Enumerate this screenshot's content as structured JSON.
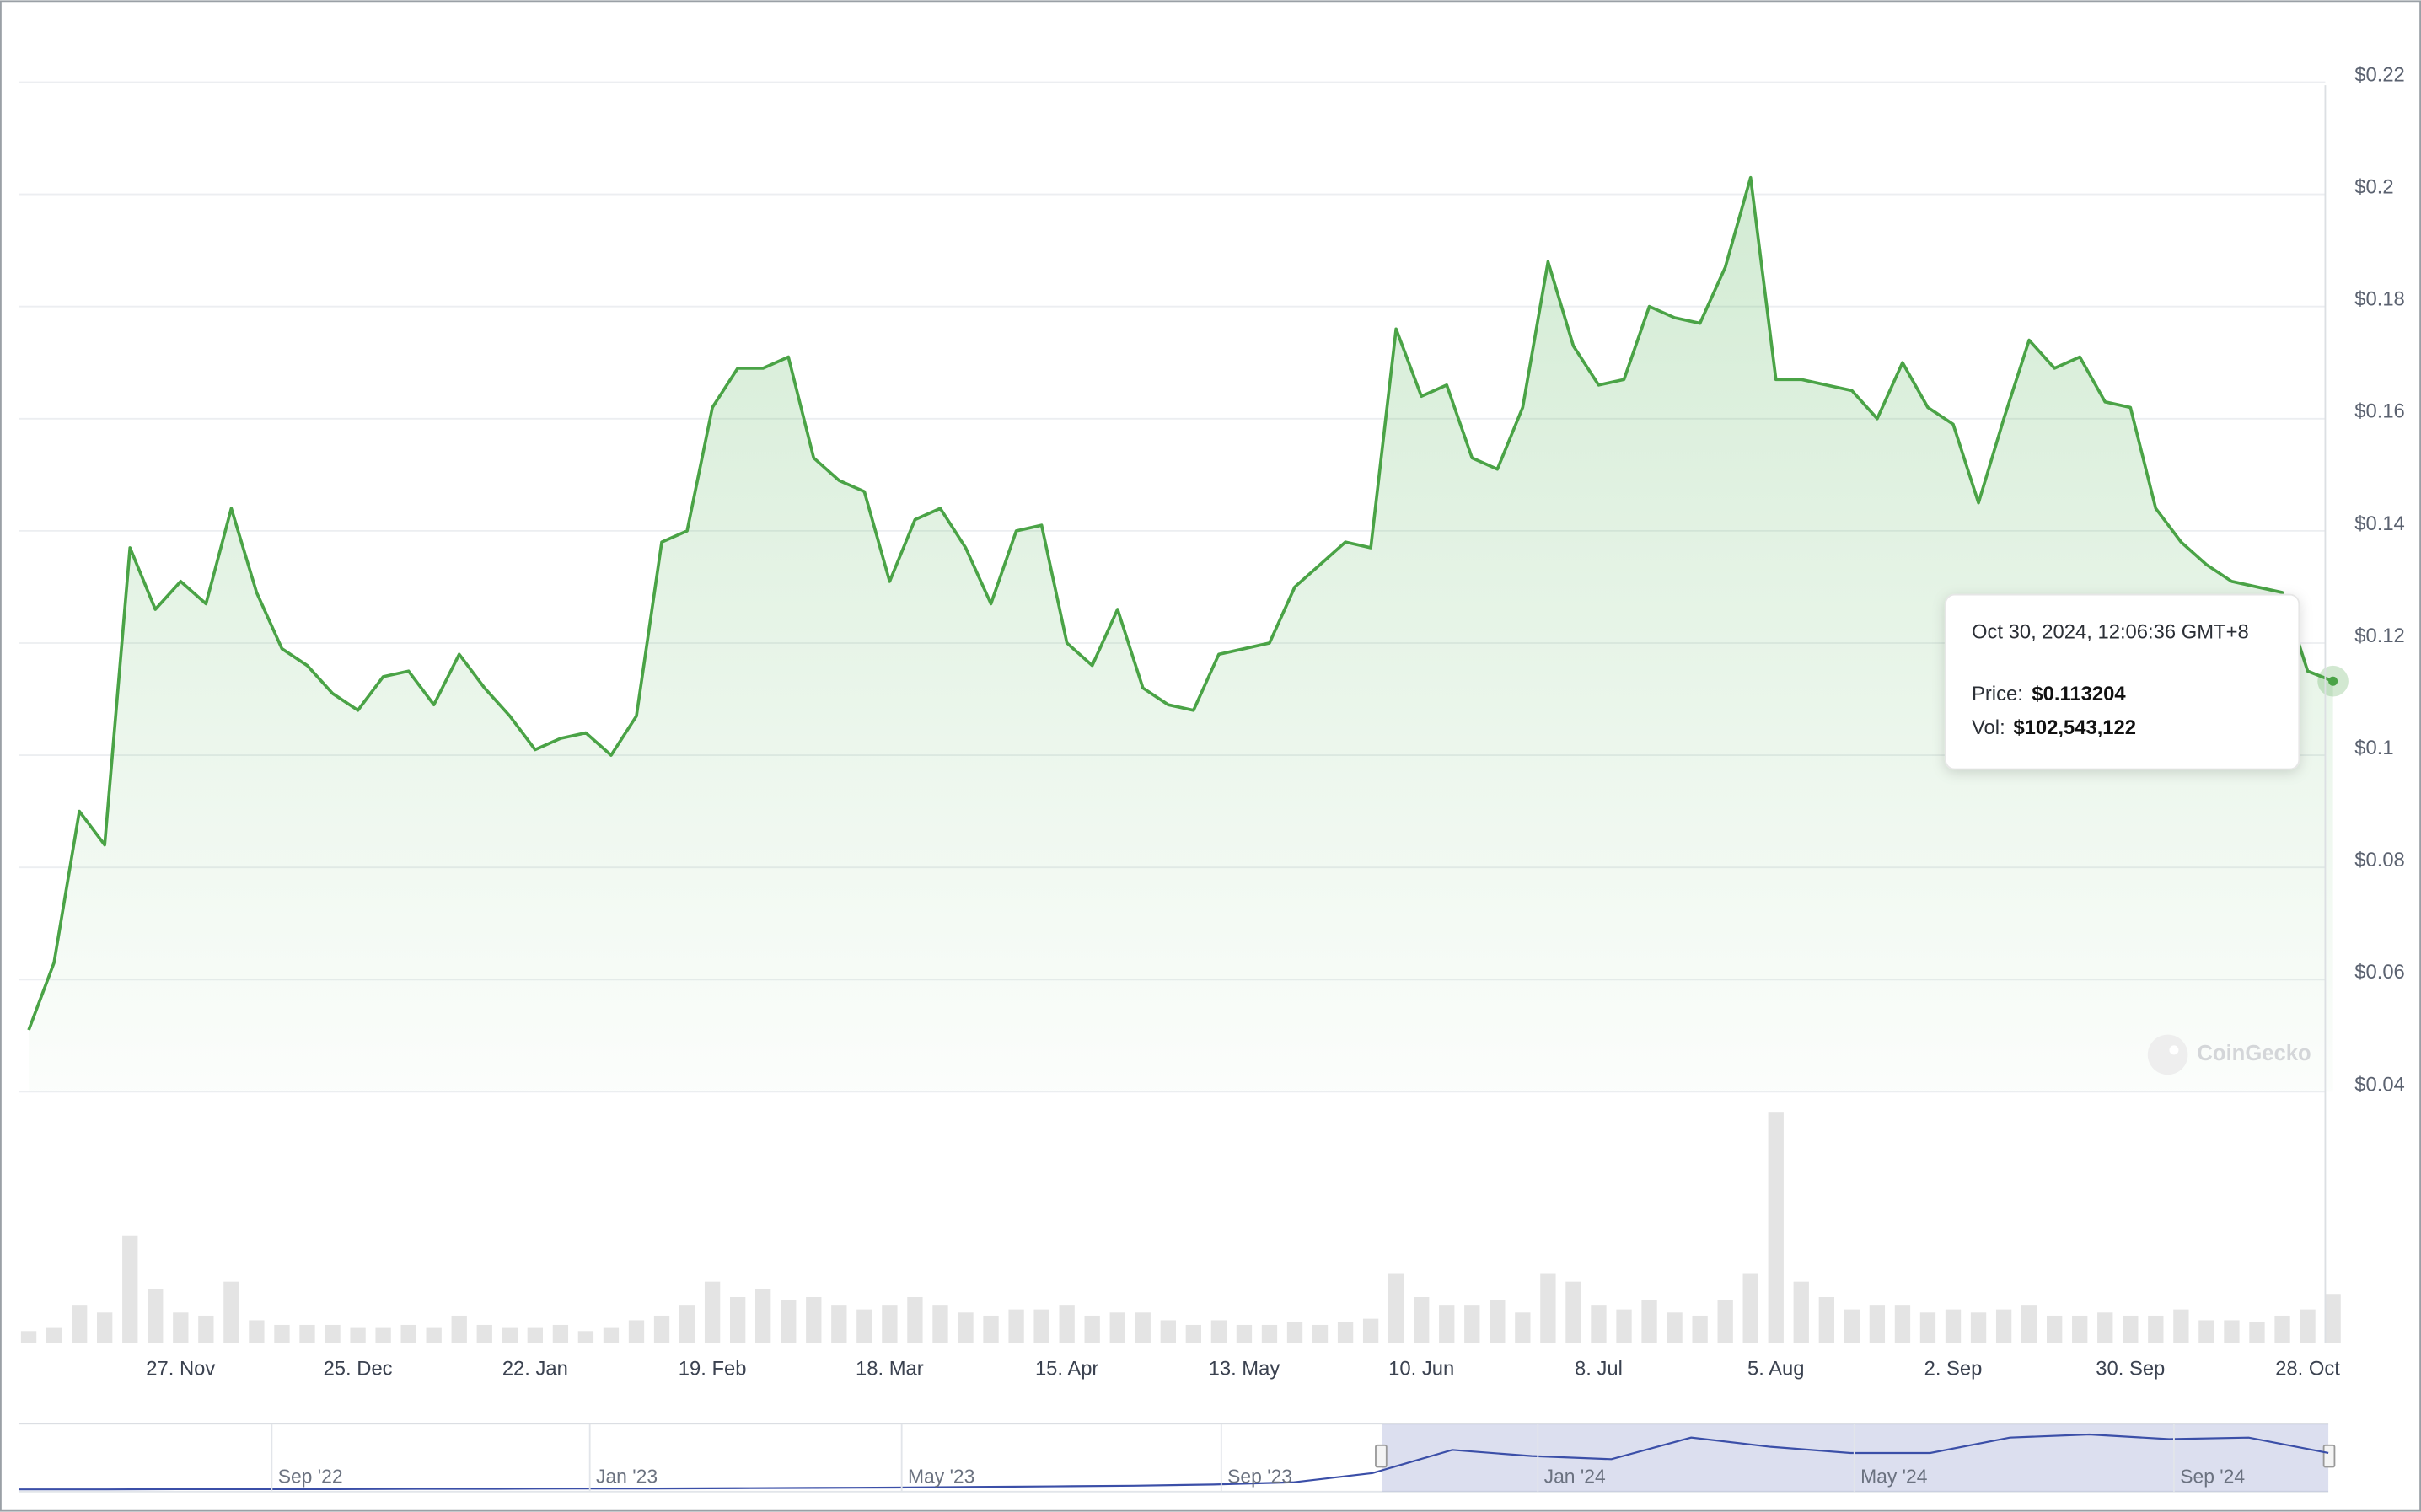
{
  "chart_data": {
    "type": "line",
    "color": "#4aa346",
    "categories": [
      null,
      null,
      null,
      null,
      null,
      null,
      "27. Nov",
      null,
      null,
      null,
      null,
      null,
      null,
      "25. Dec",
      null,
      null,
      null,
      null,
      null,
      null,
      "22. Jan",
      null,
      null,
      null,
      null,
      null,
      null,
      "19. Feb",
      null,
      null,
      null,
      null,
      null,
      null,
      "18. Mar",
      null,
      null,
      null,
      null,
      null,
      null,
      "15. Apr",
      null,
      null,
      null,
      null,
      null,
      null,
      "13. May",
      null,
      null,
      null,
      null,
      null,
      null,
      "10. Jun",
      null,
      null,
      null,
      null,
      null,
      null,
      "8. Jul",
      null,
      null,
      null,
      null,
      null,
      null,
      "5. Aug",
      null,
      null,
      null,
      null,
      null,
      null,
      "2. Sep",
      null,
      null,
      null,
      null,
      null,
      null,
      "30. Sep",
      null,
      null,
      null,
      null,
      null,
      null,
      "28. Oct",
      null
    ],
    "values": [
      0.051,
      0.063,
      0.09,
      0.084,
      0.137,
      0.126,
      0.131,
      0.127,
      0.144,
      0.129,
      0.119,
      0.116,
      0.111,
      0.108,
      0.114,
      0.115,
      0.109,
      0.118,
      0.112,
      0.107,
      0.101,
      0.103,
      0.104,
      0.1,
      0.107,
      0.138,
      0.14,
      0.162,
      0.169,
      0.169,
      0.171,
      0.153,
      0.149,
      0.147,
      0.131,
      0.142,
      0.144,
      0.137,
      0.127,
      0.14,
      0.141,
      0.12,
      0.116,
      0.126,
      0.112,
      0.109,
      0.108,
      0.118,
      0.119,
      0.12,
      0.13,
      0.134,
      0.138,
      0.137,
      0.176,
      0.164,
      0.166,
      0.153,
      0.151,
      0.162,
      0.188,
      0.173,
      0.166,
      0.167,
      0.18,
      0.178,
      0.177,
      0.187,
      0.203,
      0.167,
      0.167,
      0.166,
      0.165,
      0.16,
      0.17,
      0.162,
      0.159,
      0.145,
      0.16,
      0.174,
      0.169,
      0.171,
      0.163,
      0.162,
      0.144,
      0.138,
      0.134,
      0.131,
      0.13,
      0.129,
      0.115,
      0.113204
    ],
    "volume": {
      "color": "#e4e4e4",
      "values": [
        25600000,
        32000000,
        80000000,
        64000000,
        224000000,
        112000000,
        64000000,
        57600000,
        128000000,
        48000000,
        38400000,
        38400000,
        38400000,
        32000000,
        32000000,
        38400000,
        32000000,
        57600000,
        38400000,
        32000000,
        32000000,
        38400000,
        25600000,
        32000000,
        48000000,
        57600000,
        80000000,
        128000000,
        96000000,
        112000000,
        89600000,
        96000000,
        80000000,
        70400000,
        80000000,
        96000000,
        80000000,
        64000000,
        57600000,
        70400000,
        70400000,
        80000000,
        57600000,
        64000000,
        64000000,
        48000000,
        38400000,
        48000000,
        38400000,
        38400000,
        44800000,
        38400000,
        44800000,
        51200000,
        144000000,
        96000000,
        80000000,
        80000000,
        89600000,
        64000000,
        144000000,
        128000000,
        80000000,
        70400000,
        89600000,
        64000000,
        57600000,
        89600000,
        144000000,
        480000000,
        128000000,
        96000000,
        70400000,
        80000000,
        80000000,
        64000000,
        70400000,
        64000000,
        70400000,
        80000000,
        57600000,
        57600000,
        64000000,
        57600000,
        57600000,
        70400000,
        48000000,
        48000000,
        44800000,
        57600000,
        70400000,
        102543122
      ]
    },
    "ylim": [
      0.04,
      0.22
    ],
    "yticks": [
      {
        "value": 0.04,
        "label": "$0.04"
      },
      {
        "value": 0.06,
        "label": "$0.06"
      },
      {
        "value": 0.08,
        "label": "$0.08"
      },
      {
        "value": 0.1,
        "label": "$0.1"
      },
      {
        "value": 0.12,
        "label": "$0.12"
      },
      {
        "value": 0.14,
        "label": "$0.14"
      },
      {
        "value": 0.16,
        "label": "$0.16"
      },
      {
        "value": 0.18,
        "label": "$0.18"
      },
      {
        "value": 0.2,
        "label": "$0.2"
      },
      {
        "value": 0.22,
        "label": "$0.22"
      }
    ],
    "grid": true,
    "tooltip": {
      "date": "Oct 30, 2024, 12:06:36 GMT+8",
      "price_label": "Price:",
      "price": "$0.113204",
      "vol_label": "Vol:",
      "vol": "$102,543,122"
    },
    "watermark": "CoinGecko",
    "navigator": {
      "color": "#3b4fa8",
      "labels": [
        "Sep '22",
        "Jan '23",
        "May '23",
        "Sep '23",
        "Jan '24",
        "May '24",
        "Sep '24"
      ],
      "values": [
        0.002,
        0.002,
        0.003,
        0.003,
        0.003,
        0.004,
        0.004,
        0.005,
        0.005,
        0.006,
        0.007,
        0.008,
        0.01,
        0.012,
        0.014,
        0.018,
        0.025,
        0.055,
        0.13,
        0.11,
        0.1,
        0.17,
        0.14,
        0.12,
        0.12,
        0.17,
        0.18,
        0.165,
        0.17,
        0.12
      ]
    }
  }
}
